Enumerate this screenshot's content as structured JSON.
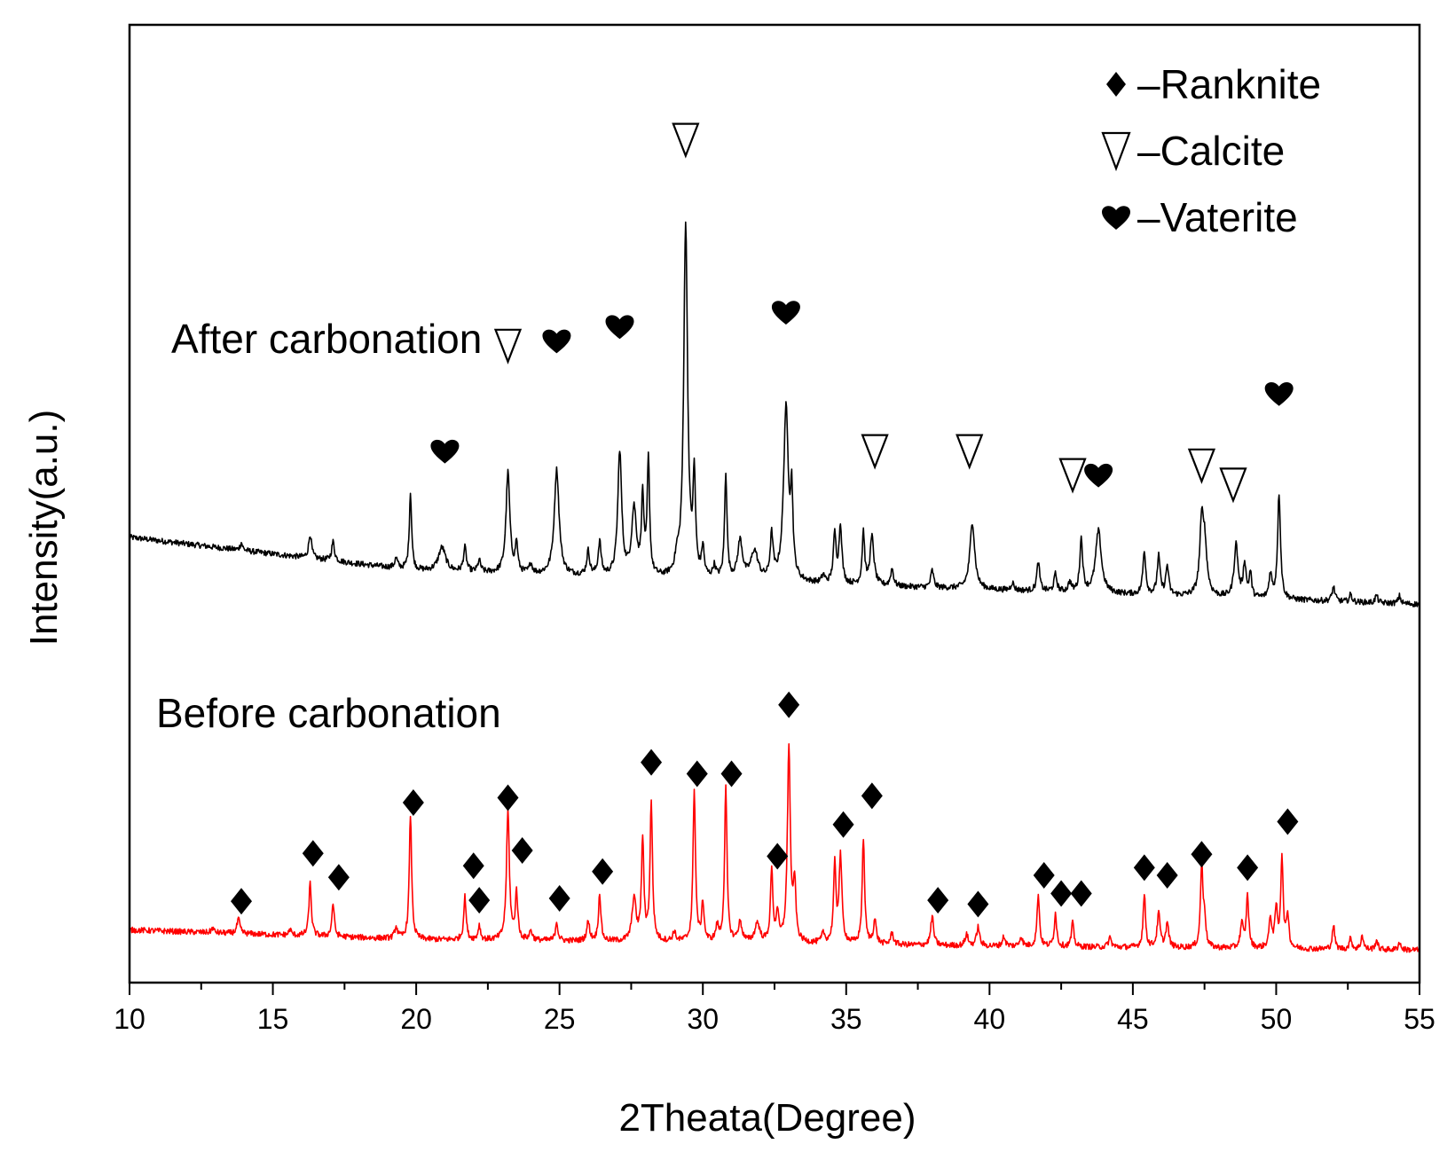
{
  "chart_data": {
    "type": "line",
    "title": "",
    "xlabel": "2Theata(Degree)",
    "ylabel": "Intensity(a.u.)",
    "xlim": [
      10,
      55
    ],
    "xticks": [
      10,
      15,
      20,
      25,
      30,
      35,
      40,
      45,
      50,
      55
    ],
    "ylim": [
      0,
      100
    ],
    "legend": {
      "position": "top-right",
      "entries": [
        {
          "symbol": "diamond",
          "glyph": "♦",
          "label": "–Ranknite"
        },
        {
          "symbol": "triangle-down",
          "glyph": "∇",
          "label": "–Calcite"
        },
        {
          "symbol": "heart",
          "glyph": "♥",
          "label": "–Vaterite"
        }
      ]
    },
    "series": [
      {
        "name": "After carbonation",
        "label": "After carbonation",
        "color": "#000000",
        "baseline": [
          [
            10,
            46.5
          ],
          [
            20,
            43
          ],
          [
            30,
            42
          ],
          [
            40,
            41
          ],
          [
            45,
            40.5
          ],
          [
            55,
            39.5
          ]
        ],
        "peaks": [
          [
            13.9,
            0.8,
            0.05
          ],
          [
            16.3,
            2.5,
            0.06
          ],
          [
            17.1,
            2.0,
            0.06
          ],
          [
            19.3,
            1.0,
            0.06
          ],
          [
            19.8,
            8.0,
            0.05
          ],
          [
            20.9,
            2.5,
            0.15
          ],
          [
            21.7,
            2.5,
            0.06
          ],
          [
            22.2,
            1.2,
            0.06
          ],
          [
            23.2,
            10.5,
            0.08
          ],
          [
            23.5,
            3.0,
            0.05
          ],
          [
            24.0,
            1.0,
            0.06
          ],
          [
            24.9,
            11.0,
            0.1
          ],
          [
            26.0,
            2.5,
            0.06
          ],
          [
            26.4,
            3.5,
            0.06
          ],
          [
            27.1,
            13.0,
            0.08
          ],
          [
            27.6,
            7.0,
            0.1
          ],
          [
            27.9,
            8.0,
            0.05
          ],
          [
            28.1,
            12.0,
            0.05
          ],
          [
            29.1,
            1.5,
            0.08
          ],
          [
            29.4,
            37.0,
            0.08
          ],
          [
            29.7,
            10.0,
            0.05
          ],
          [
            30.0,
            3.0,
            0.05
          ],
          [
            30.4,
            1.2,
            0.06
          ],
          [
            30.8,
            11.0,
            0.05
          ],
          [
            31.3,
            4.0,
            0.1
          ],
          [
            31.8,
            3.0,
            0.15
          ],
          [
            32.4,
            4.5,
            0.06
          ],
          [
            32.9,
            18.0,
            0.1
          ],
          [
            33.1,
            8.0,
            0.05
          ],
          [
            34.2,
            0.8,
            0.06
          ],
          [
            34.6,
            5.0,
            0.06
          ],
          [
            34.8,
            6.0,
            0.06
          ],
          [
            35.6,
            5.5,
            0.05
          ],
          [
            35.9,
            5.0,
            0.08
          ],
          [
            36.6,
            1.8,
            0.06
          ],
          [
            38.0,
            1.8,
            0.06
          ],
          [
            39.4,
            7.0,
            0.1
          ],
          [
            40.8,
            0.8,
            0.06
          ],
          [
            41.7,
            3.0,
            0.06
          ],
          [
            42.3,
            1.8,
            0.06
          ],
          [
            42.8,
            1.0,
            0.06
          ],
          [
            43.2,
            5.5,
            0.06
          ],
          [
            43.8,
            6.5,
            0.12
          ],
          [
            45.4,
            4.5,
            0.06
          ],
          [
            45.9,
            4.0,
            0.06
          ],
          [
            46.2,
            3.0,
            0.06
          ],
          [
            47.4,
            6.5,
            0.08
          ],
          [
            47.5,
            5.0,
            0.1
          ],
          [
            48.6,
            5.5,
            0.08
          ],
          [
            48.9,
            3.5,
            0.06
          ],
          [
            49.1,
            2.5,
            0.05
          ],
          [
            49.8,
            2.5,
            0.06
          ],
          [
            50.1,
            11.0,
            0.06
          ],
          [
            52.0,
            1.5,
            0.06
          ],
          [
            52.6,
            0.8,
            0.05
          ],
          [
            53.5,
            0.8,
            0.05
          ],
          [
            54.3,
            0.8,
            0.05
          ]
        ],
        "markers": [
          {
            "type": "heart",
            "x": 21.0,
            "y": 55.5
          },
          {
            "type": "triangle",
            "x": 23.2,
            "y": 66.5
          },
          {
            "type": "heart",
            "x": 24.9,
            "y": 67.0
          },
          {
            "type": "heart",
            "x": 27.1,
            "y": 68.5
          },
          {
            "type": "triangle",
            "x": 29.4,
            "y": 88.0
          },
          {
            "type": "heart",
            "x": 32.9,
            "y": 70.0
          },
          {
            "type": "triangle",
            "x": 36.0,
            "y": 55.5
          },
          {
            "type": "triangle",
            "x": 39.3,
            "y": 55.5
          },
          {
            "type": "triangle",
            "x": 42.9,
            "y": 53.0
          },
          {
            "type": "heart",
            "x": 43.8,
            "y": 53.0
          },
          {
            "type": "triangle",
            "x": 47.4,
            "y": 54.0
          },
          {
            "type": "triangle",
            "x": 48.5,
            "y": 52.0
          },
          {
            "type": "heart",
            "x": 50.1,
            "y": 61.5
          }
        ]
      },
      {
        "name": "Before carbonation",
        "label": "Before carbonation",
        "color": "#ff0000",
        "baseline": [
          [
            10,
            5.5
          ],
          [
            20,
            4.5
          ],
          [
            30,
            4.2
          ],
          [
            40,
            3.8
          ],
          [
            55,
            3.4
          ]
        ],
        "peaks": [
          [
            12.9,
            0.5,
            0.05
          ],
          [
            13.8,
            1.5,
            0.06
          ],
          [
            15.6,
            0.6,
            0.05
          ],
          [
            16.3,
            5.5,
            0.05
          ],
          [
            17.1,
            3.5,
            0.05
          ],
          [
            19.3,
            1.2,
            0.06
          ],
          [
            19.8,
            13.0,
            0.05
          ],
          [
            21.7,
            4.5,
            0.05
          ],
          [
            22.2,
            1.5,
            0.05
          ],
          [
            23.2,
            13.5,
            0.06
          ],
          [
            23.5,
            5.0,
            0.05
          ],
          [
            24.0,
            1.0,
            0.06
          ],
          [
            24.9,
            2.0,
            0.05
          ],
          [
            26.0,
            2.0,
            0.06
          ],
          [
            26.4,
            5.0,
            0.05
          ],
          [
            27.6,
            4.5,
            0.08
          ],
          [
            27.9,
            10.5,
            0.05
          ],
          [
            28.2,
            14.5,
            0.05
          ],
          [
            29.0,
            1.0,
            0.06
          ],
          [
            29.7,
            16.0,
            0.05
          ],
          [
            30.0,
            4.0,
            0.05
          ],
          [
            30.5,
            1.5,
            0.06
          ],
          [
            30.8,
            16.0,
            0.05
          ],
          [
            31.3,
            2.0,
            0.08
          ],
          [
            31.9,
            2.0,
            0.1
          ],
          [
            32.4,
            7.5,
            0.05
          ],
          [
            32.6,
            3.0,
            0.05
          ],
          [
            33.0,
            20.5,
            0.06
          ],
          [
            33.2,
            6.0,
            0.05
          ],
          [
            34.2,
            1.0,
            0.06
          ],
          [
            34.6,
            8.0,
            0.05
          ],
          [
            34.8,
            9.0,
            0.06
          ],
          [
            35.6,
            11.0,
            0.05
          ],
          [
            36.0,
            2.5,
            0.06
          ],
          [
            36.6,
            1.2,
            0.06
          ],
          [
            38.0,
            3.0,
            0.06
          ],
          [
            39.2,
            1.2,
            0.06
          ],
          [
            39.6,
            2.0,
            0.06
          ],
          [
            40.5,
            1.0,
            0.06
          ],
          [
            41.1,
            1.0,
            0.06
          ],
          [
            41.7,
            5.5,
            0.05
          ],
          [
            42.3,
            3.5,
            0.05
          ],
          [
            42.9,
            2.5,
            0.05
          ],
          [
            44.2,
            1.0,
            0.06
          ],
          [
            45.4,
            5.5,
            0.05
          ],
          [
            45.9,
            3.5,
            0.06
          ],
          [
            46.2,
            2.5,
            0.06
          ],
          [
            47.4,
            8.5,
            0.05
          ],
          [
            47.5,
            3.0,
            0.05
          ],
          [
            48.8,
            2.5,
            0.06
          ],
          [
            49.0,
            5.5,
            0.05
          ],
          [
            49.8,
            3.0,
            0.06
          ],
          [
            50.0,
            4.0,
            0.05
          ],
          [
            50.2,
            9.5,
            0.05
          ],
          [
            50.4,
            3.5,
            0.05
          ],
          [
            52.0,
            2.5,
            0.05
          ],
          [
            52.6,
            1.2,
            0.05
          ],
          [
            53.0,
            1.5,
            0.05
          ],
          [
            53.5,
            1.0,
            0.05
          ],
          [
            54.3,
            0.8,
            0.05
          ]
        ],
        "markers": [
          {
            "type": "diamond",
            "x": 13.9,
            "y": 8.5
          },
          {
            "type": "diamond",
            "x": 16.4,
            "y": 13.5
          },
          {
            "type": "diamond",
            "x": 17.3,
            "y": 11.0
          },
          {
            "type": "diamond",
            "x": 19.9,
            "y": 18.8
          },
          {
            "type": "diamond",
            "x": 22.0,
            "y": 12.2
          },
          {
            "type": "diamond",
            "x": 22.2,
            "y": 8.6
          },
          {
            "type": "diamond",
            "x": 23.2,
            "y": 19.3
          },
          {
            "type": "diamond",
            "x": 23.7,
            "y": 13.8
          },
          {
            "type": "diamond",
            "x": 25.0,
            "y": 8.8
          },
          {
            "type": "diamond",
            "x": 26.5,
            "y": 11.6
          },
          {
            "type": "diamond",
            "x": 28.2,
            "y": 23.0
          },
          {
            "type": "diamond",
            "x": 29.8,
            "y": 21.8
          },
          {
            "type": "diamond",
            "x": 31.0,
            "y": 21.8
          },
          {
            "type": "diamond",
            "x": 32.6,
            "y": 13.2
          },
          {
            "type": "diamond",
            "x": 33.0,
            "y": 29.0
          },
          {
            "type": "diamond",
            "x": 34.9,
            "y": 16.5
          },
          {
            "type": "diamond",
            "x": 35.9,
            "y": 19.5
          },
          {
            "type": "diamond",
            "x": 38.2,
            "y": 8.6
          },
          {
            "type": "diamond",
            "x": 39.6,
            "y": 8.2
          },
          {
            "type": "diamond",
            "x": 41.9,
            "y": 11.2
          },
          {
            "type": "diamond",
            "x": 42.5,
            "y": 9.3
          },
          {
            "type": "diamond",
            "x": 43.2,
            "y": 9.3
          },
          {
            "type": "diamond",
            "x": 45.4,
            "y": 12.0
          },
          {
            "type": "diamond",
            "x": 46.2,
            "y": 11.2
          },
          {
            "type": "diamond",
            "x": 47.4,
            "y": 13.4
          },
          {
            "type": "diamond",
            "x": 49.0,
            "y": 12.0
          },
          {
            "type": "diamond",
            "x": 50.4,
            "y": 16.8
          }
        ]
      }
    ]
  }
}
